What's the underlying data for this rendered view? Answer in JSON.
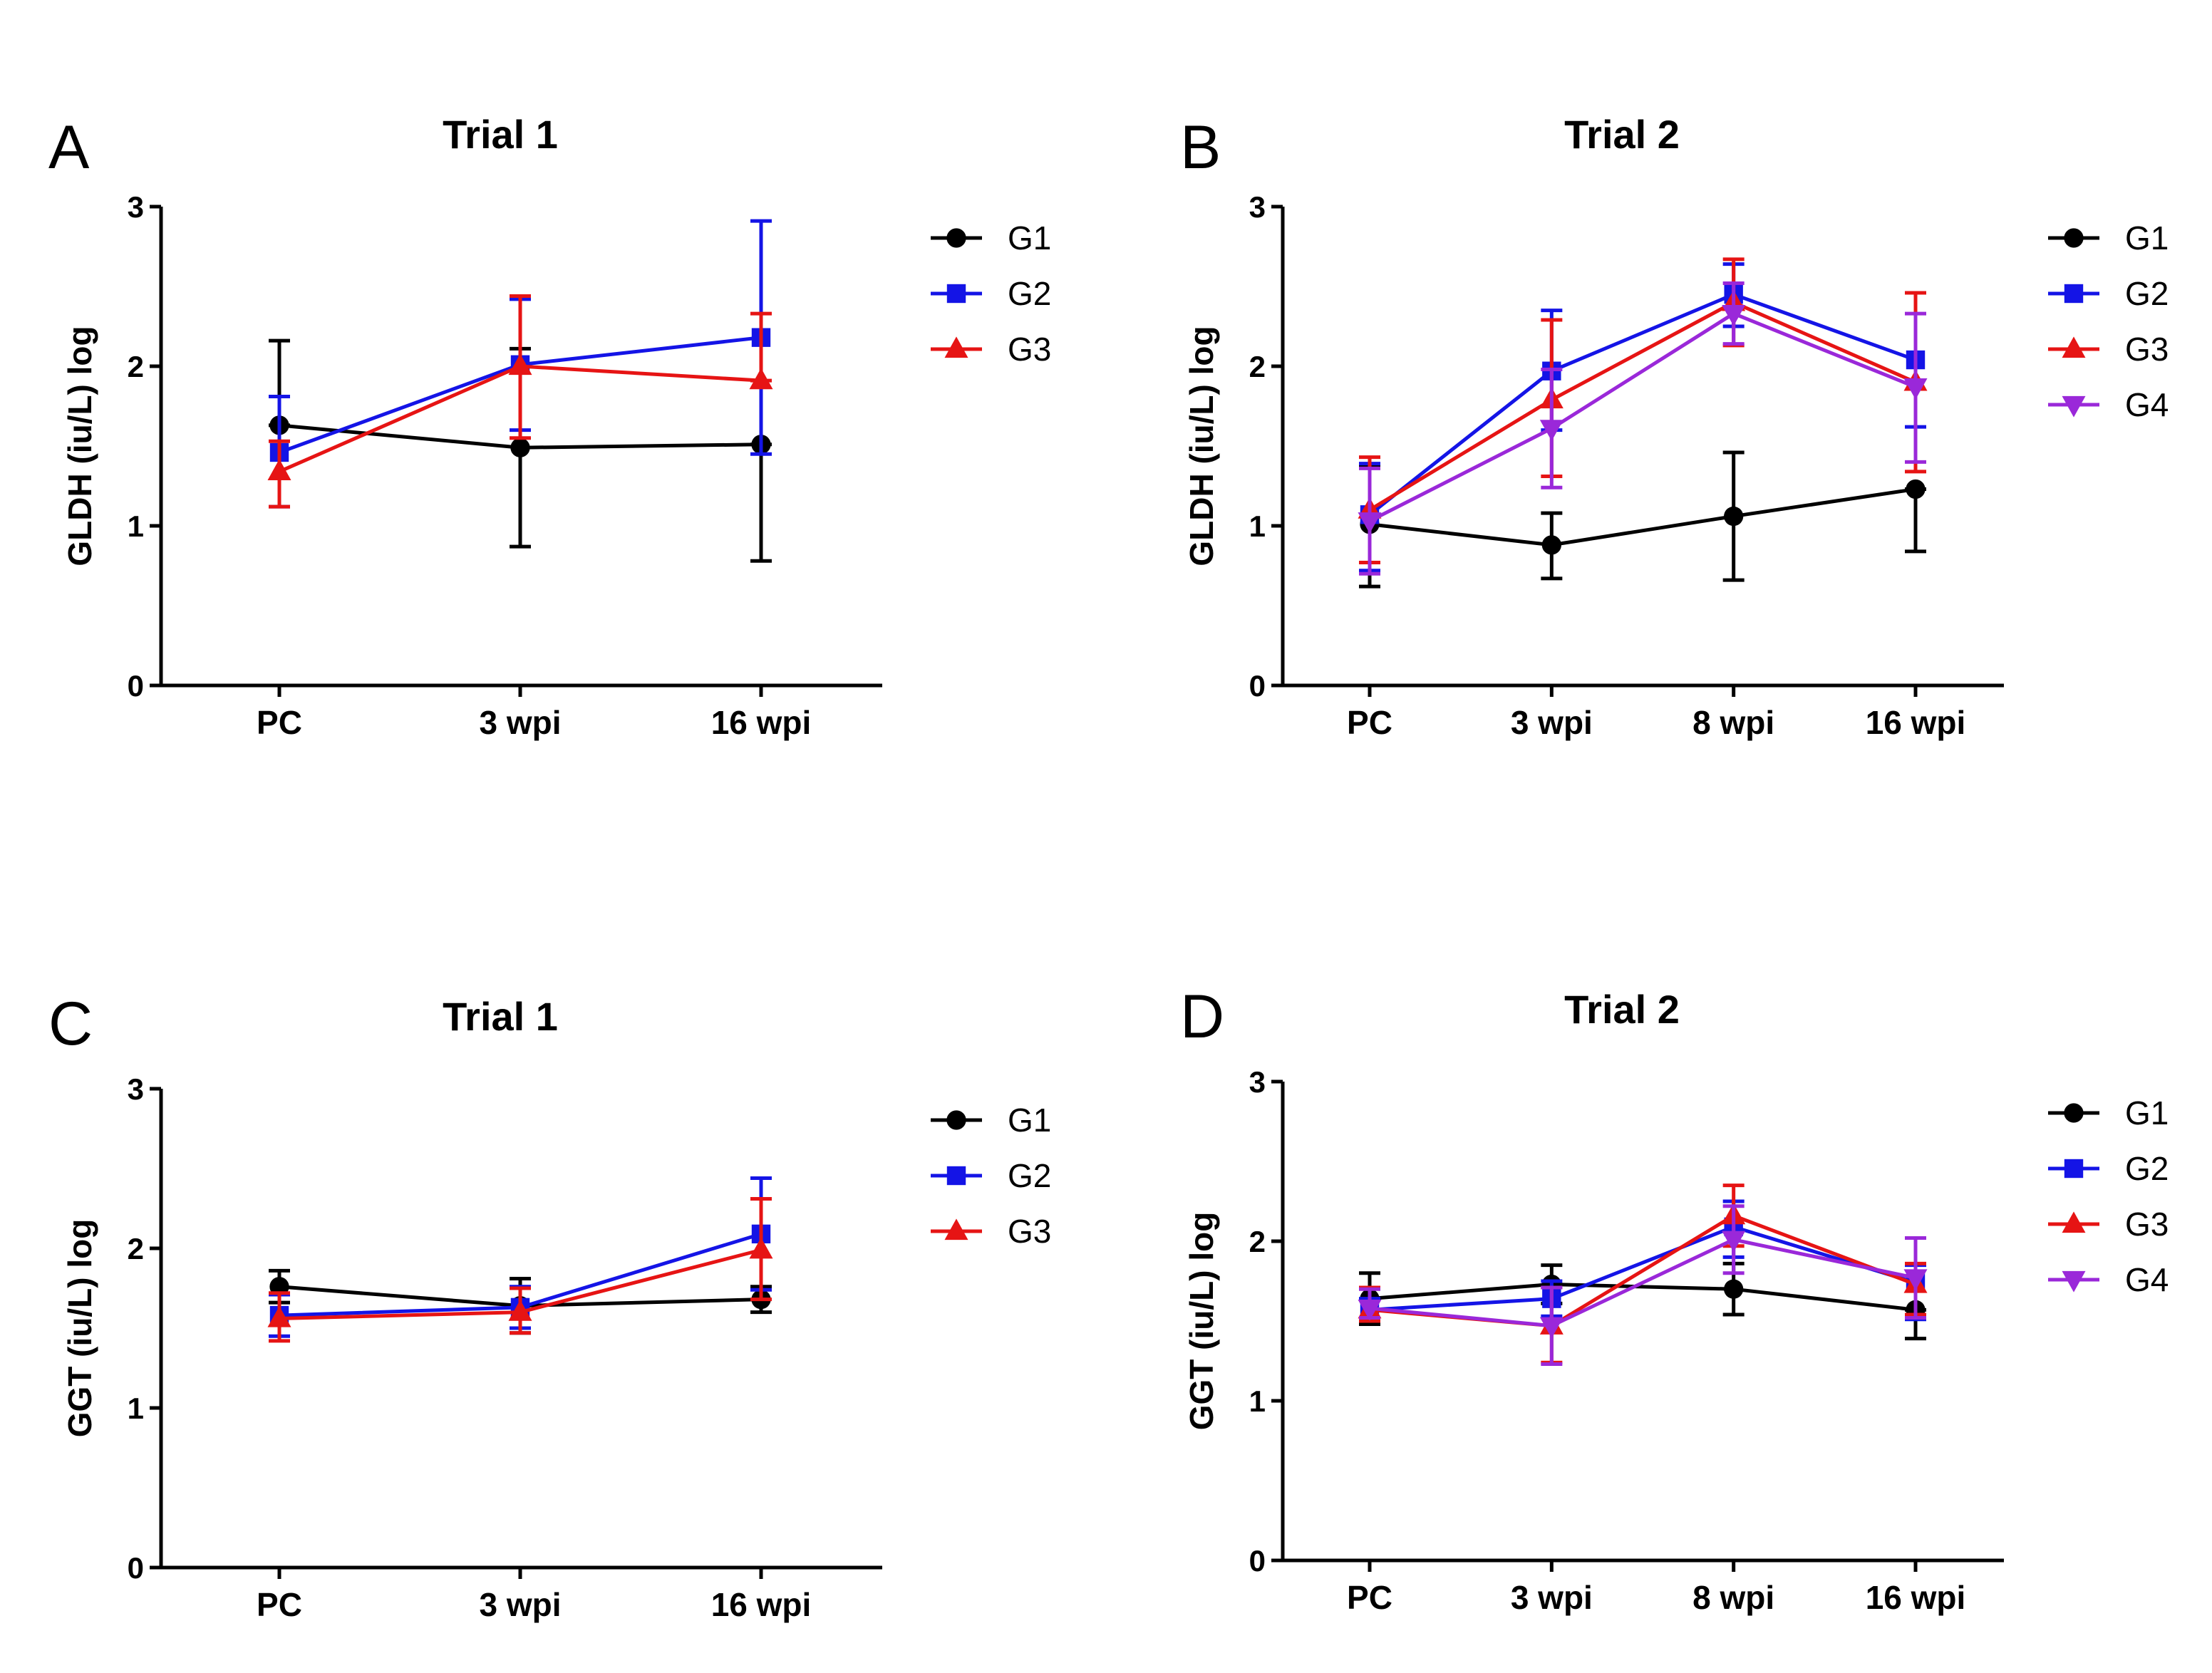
{
  "colors": {
    "G1": "#000000",
    "G2": "#1414e6",
    "G3": "#e61414",
    "G4": "#9a28d9"
  },
  "markers": {
    "G1": "circle",
    "G2": "square",
    "G3": "triangle-up",
    "G4": "triangle-down"
  },
  "chart_data": [
    {
      "panel": "A",
      "type": "line",
      "title": "Trial 1",
      "ylabel": "GLDH (iu/L) log",
      "xlabel": "",
      "ylim": [
        0,
        3
      ],
      "yticks": [
        "0",
        "1",
        "2",
        "3"
      ],
      "categories": [
        "PC",
        "3 wpi",
        "16 wpi"
      ],
      "legend": "right",
      "series": [
        {
          "name": "G1",
          "values": [
            1.63,
            1.49,
            1.51
          ],
          "err_upper": [
            2.16,
            2.11,
            1.51
          ],
          "err_lower": [
            1.63,
            0.87,
            0.78
          ]
        },
        {
          "name": "G2",
          "values": [
            1.46,
            2.01,
            2.18
          ],
          "err_upper": [
            1.81,
            2.42,
            2.91
          ],
          "err_lower": [
            1.12,
            1.6,
            1.45
          ]
        },
        {
          "name": "G3",
          "values": [
            1.34,
            2.0,
            1.91
          ],
          "err_upper": [
            1.53,
            2.44,
            2.33
          ],
          "err_lower": [
            1.12,
            1.55,
            1.91
          ]
        }
      ]
    },
    {
      "panel": "B",
      "type": "line",
      "title": "Trial 2",
      "ylabel": "GLDH (iu/L) log",
      "xlabel": "",
      "ylim": [
        0,
        3
      ],
      "yticks": [
        "0",
        "1",
        "2",
        "3"
      ],
      "categories": [
        "PC",
        "3 wpi",
        "8 wpi",
        "16 wpi"
      ],
      "legend": "right",
      "series": [
        {
          "name": "G1",
          "values": [
            1.01,
            0.88,
            1.06,
            1.23
          ],
          "err_upper": [
            1.38,
            1.08,
            1.46,
            1.23
          ],
          "err_lower": [
            0.62,
            0.67,
            0.66,
            0.84
          ]
        },
        {
          "name": "G2",
          "values": [
            1.07,
            1.97,
            2.45,
            2.04
          ],
          "err_upper": [
            1.39,
            2.35,
            2.64,
            2.46
          ],
          "err_lower": [
            0.72,
            1.6,
            2.25,
            1.62
          ]
        },
        {
          "name": "G3",
          "values": [
            1.1,
            1.79,
            2.4,
            1.9
          ],
          "err_upper": [
            1.43,
            2.29,
            2.67,
            2.46
          ],
          "err_lower": [
            0.77,
            1.31,
            2.13,
            1.34
          ]
        },
        {
          "name": "G4",
          "values": [
            1.03,
            1.61,
            2.33,
            1.87
          ],
          "err_upper": [
            1.36,
            1.98,
            2.52,
            2.33
          ],
          "err_lower": [
            0.7,
            1.24,
            2.14,
            1.4
          ]
        }
      ]
    },
    {
      "panel": "C",
      "type": "line",
      "title": "Trial 1",
      "ylabel": "GGT (iu/L) log",
      "xlabel": "",
      "ylim": [
        0,
        3
      ],
      "yticks": [
        "0",
        "1",
        "2",
        "3"
      ],
      "categories": [
        "PC",
        "3 wpi",
        "16 wpi"
      ],
      "legend": "right",
      "series": [
        {
          "name": "G1",
          "values": [
            1.76,
            1.64,
            1.68
          ],
          "err_upper": [
            1.86,
            1.81,
            1.76
          ],
          "err_lower": [
            1.66,
            1.47,
            1.6
          ]
        },
        {
          "name": "G2",
          "values": [
            1.58,
            1.63,
            2.09
          ],
          "err_upper": [
            1.71,
            1.76,
            2.44
          ],
          "err_lower": [
            1.45,
            1.5,
            1.74
          ]
        },
        {
          "name": "G3",
          "values": [
            1.56,
            1.6,
            1.99
          ],
          "err_upper": [
            1.72,
            1.75,
            2.31
          ],
          "err_lower": [
            1.42,
            1.47,
            1.68
          ]
        }
      ]
    },
    {
      "panel": "D",
      "type": "line",
      "title": "Trial 2",
      "ylabel": "GGT (iu/L) log",
      "xlabel": "",
      "ylim": [
        0,
        3
      ],
      "yticks": [
        "0",
        "1",
        "2",
        "3"
      ],
      "categories": [
        "PC",
        "3 wpi",
        "8 wpi",
        "16 wpi"
      ],
      "legend": "right",
      "series": [
        {
          "name": "G1",
          "values": [
            1.64,
            1.73,
            1.7,
            1.57
          ],
          "err_upper": [
            1.8,
            1.85,
            1.86,
            1.57
          ],
          "err_lower": [
            1.48,
            1.61,
            1.54,
            1.39
          ]
        },
        {
          "name": "G2",
          "values": [
            1.57,
            1.64,
            2.09,
            1.74
          ],
          "err_upper": [
            1.64,
            1.75,
            2.25,
            1.85
          ],
          "err_lower": [
            1.52,
            1.53,
            1.9,
            1.51
          ]
        },
        {
          "name": "G3",
          "values": [
            1.57,
            1.47,
            2.16,
            1.73
          ],
          "err_upper": [
            1.71,
            1.71,
            2.35,
            1.86
          ],
          "err_lower": [
            1.5,
            1.24,
            1.97,
            1.54
          ]
        },
        {
          "name": "G4",
          "values": [
            1.58,
            1.47,
            2.01,
            1.77
          ],
          "err_upper": [
            1.7,
            1.71,
            2.22,
            2.02
          ],
          "err_lower": [
            1.52,
            1.23,
            1.8,
            1.52
          ]
        }
      ]
    }
  ]
}
